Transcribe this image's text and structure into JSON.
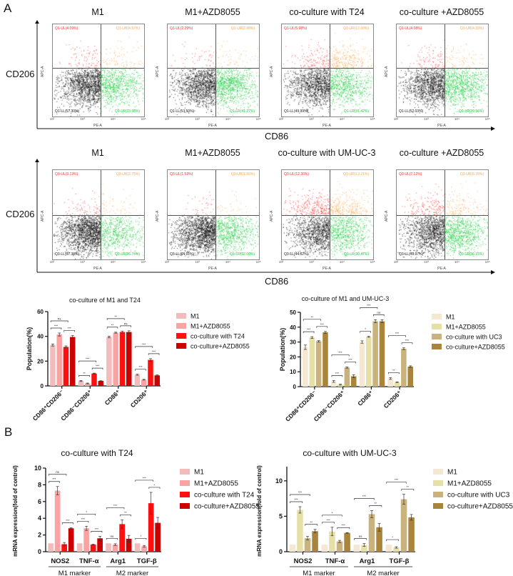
{
  "panel_a_label": "A",
  "panel_b_label": "B",
  "flow": {
    "y_marker": "CD206",
    "x_marker": "CD86",
    "y_axis_label": "APC-A",
    "x_axis_label": "PE-A",
    "ticks": [
      "10²",
      "10³",
      "10⁴",
      "10⁵"
    ],
    "colors": {
      "UL": "#ff2a2a",
      "UR": "#ffa54a",
      "LL": "#111111",
      "LR": "#18cc3a"
    },
    "rows": [
      {
        "plots": [
          {
            "title": "M1",
            "UL": "Q1-UL(4.09%)",
            "UR": "Q1-UR(4.57%)",
            "LL": "Q1-LL(57.30%)",
            "LR": "Q1-LR(33.98%)",
            "pct": {
              "UL": 4.09,
              "UR": 4.57,
              "LL": 57.3,
              "LR": 33.98
            }
          },
          {
            "title": "M1+AZD8055",
            "UL": "Q1-UL(2.29%)",
            "UR": "Q1-UR(2.98%)",
            "LL": "Q1-LL(53.50%)",
            "LR": "Q1-LR(41.27%)",
            "pct": {
              "UL": 2.29,
              "UR": 2.98,
              "LL": 53.5,
              "LR": 41.27
            }
          },
          {
            "title": "co-culture with T24",
            "UL": "Q1-UL(5.98%)",
            "UR": "Q1-UR(12.60%)",
            "LL": "Q1-LL(49.99%)",
            "LR": "Q1-LR(31.42%)",
            "pct": {
              "UL": 5.98,
              "UR": 12.6,
              "LL": 49.99,
              "LR": 31.42
            }
          },
          {
            "title": "co-culture +AZD8055",
            "UL": "Q1-UL(4.08%)",
            "UR": "Q1-UR(4.33%)",
            "LL": "Q1-LL(52.03%)",
            "LR": "Q1-LR(39.56%)",
            "pct": {
              "UL": 4.08,
              "UR": 4.33,
              "LL": 52.03,
              "LR": 39.56
            }
          }
        ]
      },
      {
        "plots": [
          {
            "title": "M1",
            "UL": "Q3-UL(3.13%)",
            "UR": "Q3-UR(2.75%)",
            "LL": "Q3-LL(67.38%)",
            "LR": "Q3-LR(26.74%)",
            "pct": {
              "UL": 3.13,
              "UR": 2.75,
              "LL": 67.38,
              "LR": 26.74
            }
          },
          {
            "title": "M1+AZD8055",
            "UL": "Q3-UL(1.53%)",
            "UR": "Q3-UR(1.56%)",
            "LL": "Q3-LL(64.91%)",
            "LR": "Q3-LR(32.00%)",
            "pct": {
              "UL": 1.53,
              "UR": 1.56,
              "LL": 64.91,
              "LR": 32.0
            }
          },
          {
            "title": "co-culture with UM-UC-3",
            "UL": "Q3-UL(12.30%)",
            "UR": "Q3-UR(13.21%)",
            "LL": "Q3-LL(44.02%)",
            "LR": "Q3-LR(30.47%)",
            "pct": {
              "UL": 12.3,
              "UR": 13.21,
              "LL": 44.02,
              "LR": 30.47
            }
          },
          {
            "title": "co-culture +AZD8055",
            "UL": "Q3-UL(7.12%)",
            "UR": "Q3-UR(6.76%)",
            "LL": "Q3-LL(49.97%)",
            "LR": "Q3-LR(36.15%)",
            "pct": {
              "UL": 7.12,
              "UR": 6.76,
              "LL": 49.97,
              "LR": 36.15
            }
          }
        ]
      }
    ]
  },
  "chart_data": [
    {
      "type": "bar",
      "title": "co-culture of M1 and T24",
      "ylabel": "Population(%)",
      "xlabel": "",
      "ylim": [
        0,
        60
      ],
      "yticks": [
        0,
        20,
        40,
        60
      ],
      "categories": [
        "CD86⁺CD206⁻",
        "CD86⁻CD206⁺",
        "CD86⁺",
        "CD206⁺"
      ],
      "legend_position": "right",
      "series": [
        {
          "name": "M1",
          "color": "#f3bcbc",
          "values": [
            33,
            4,
            39.5,
            9
          ],
          "errors": [
            0.8,
            0.4,
            0.7,
            0.4
          ]
        },
        {
          "name": "M1+AZD8055",
          "color": "#fba3a3",
          "values": [
            41.5,
            2,
            43,
            5
          ],
          "errors": [
            1.2,
            0.3,
            0.4,
            0.3
          ]
        },
        {
          "name": "co-culture with T24",
          "color": "#ff1010",
          "values": [
            31.5,
            10,
            43.5,
            21
          ],
          "errors": [
            0.8,
            0.3,
            0.8,
            1
          ]
        },
        {
          "name": "co-culture+AZD8055",
          "color": "#cc0000",
          "values": [
            39.5,
            4,
            43.5,
            8.5
          ],
          "errors": [
            1.2,
            0.2,
            1,
            0.4
          ]
        }
      ],
      "significance": [
        {
          "group": 0,
          "from": 0,
          "to": 1,
          "label": "***"
        },
        {
          "group": 0,
          "from": 2,
          "to": 3,
          "label": "***"
        },
        {
          "group": 0,
          "from": 0,
          "to": 2,
          "label": "ns"
        },
        {
          "group": 1,
          "from": 0,
          "to": 1,
          "label": "**"
        },
        {
          "group": 1,
          "from": 2,
          "to": 3,
          "label": "***"
        },
        {
          "group": 1,
          "from": 0,
          "to": 2,
          "label": "***"
        },
        {
          "group": 2,
          "from": 0,
          "to": 1,
          "label": "**"
        },
        {
          "group": 2,
          "from": 2,
          "to": 3,
          "label": "ns"
        },
        {
          "group": 2,
          "from": 0,
          "to": 2,
          "label": "**"
        },
        {
          "group": 3,
          "from": 0,
          "to": 1,
          "label": "***"
        },
        {
          "group": 3,
          "from": 2,
          "to": 3,
          "label": "***"
        },
        {
          "group": 3,
          "from": 0,
          "to": 2,
          "label": "***"
        }
      ]
    },
    {
      "type": "bar",
      "title": "co-culture of M1 and UM-UC-3",
      "ylabel": "Population(%)",
      "xlabel": "",
      "ylim": [
        0,
        50
      ],
      "yticks": [
        0,
        10,
        20,
        30,
        40,
        50
      ],
      "categories": [
        "CD86⁺CD206⁻",
        "CD86⁻CD206⁺",
        "CD86⁺",
        "CD206⁺"
      ],
      "legend_position": "right",
      "series": [
        {
          "name": "M1",
          "color": "#f5e8d2",
          "values": [
            26.5,
            3.5,
            30,
            5.5
          ],
          "errors": [
            1.5,
            0.6,
            0.8,
            0.6
          ]
        },
        {
          "name": "M1+AZD8055",
          "color": "#e6dfa6",
          "values": [
            33,
            1.3,
            33.5,
            3
          ],
          "errors": [
            0.6,
            0.3,
            0.3,
            0.2
          ]
        },
        {
          "name": "co-culture with UC3",
          "color": "#c9b27c",
          "values": [
            30.5,
            12.8,
            44,
            25.5
          ],
          "errors": [
            0.5,
            0.4,
            1,
            0.6
          ]
        },
        {
          "name": "co-culture+AZD8055",
          "color": "#a8853b",
          "values": [
            36.5,
            7,
            44,
            13.5
          ],
          "errors": [
            0.6,
            1,
            1,
            0.5
          ]
        }
      ],
      "significance": [
        {
          "group": 0,
          "from": 0,
          "to": 1,
          "label": "***"
        },
        {
          "group": 0,
          "from": 2,
          "to": 3,
          "label": "***"
        },
        {
          "group": 0,
          "from": 0,
          "to": 2,
          "label": "**"
        },
        {
          "group": 1,
          "from": 0,
          "to": 1,
          "label": "***"
        },
        {
          "group": 1,
          "from": 2,
          "to": 3,
          "label": "***"
        },
        {
          "group": 1,
          "from": 0,
          "to": 2,
          "label": "***"
        },
        {
          "group": 2,
          "from": 0,
          "to": 1,
          "label": "*"
        },
        {
          "group": 2,
          "from": 2,
          "to": 3,
          "label": "ns"
        },
        {
          "group": 2,
          "from": 0,
          "to": 2,
          "label": "***"
        },
        {
          "group": 3,
          "from": 0,
          "to": 1,
          "label": "**"
        },
        {
          "group": 3,
          "from": 2,
          "to": 3,
          "label": "***"
        },
        {
          "group": 3,
          "from": 0,
          "to": 2,
          "label": "***"
        }
      ]
    },
    {
      "type": "bar",
      "title": "co-culture with T24",
      "ylabel": "mRNA expression(fold of control)",
      "xlabel": "",
      "ylim": [
        0,
        10
      ],
      "yticks": [
        0,
        2,
        4,
        6,
        8,
        10
      ],
      "categories": [
        "NOS2",
        "TNF-α",
        "Arg1",
        "TGF-β"
      ],
      "category_groups": [
        {
          "label": "M1 marker",
          "from": 0,
          "to": 1
        },
        {
          "label": "M2 marker",
          "from": 2,
          "to": 3
        }
      ],
      "legend_position": "right",
      "series": [
        {
          "name": "M1",
          "color": "#f3bcbc",
          "values": [
            1,
            1,
            1,
            1
          ],
          "errors": [
            0,
            0,
            0,
            0
          ]
        },
        {
          "name": "M1+AZD8055",
          "color": "#fba3a3",
          "values": [
            7.3,
            2.8,
            0.85,
            0.65
          ],
          "errors": [
            0.5,
            0.25,
            0.1,
            0.1
          ]
        },
        {
          "name": "co-culture with T24",
          "color": "#ff1010",
          "values": [
            0.9,
            0.85,
            3.3,
            5.8
          ],
          "errors": [
            0.2,
            0.05,
            0.5,
            1.3
          ]
        },
        {
          "name": "co-culture+AZD8055",
          "color": "#cc0000",
          "values": [
            2.8,
            1.6,
            1.55,
            3.45
          ],
          "errors": [
            0.05,
            0.25,
            0.4,
            0.65
          ]
        }
      ],
      "significance": [
        {
          "group": 0,
          "from": 0,
          "to": 1,
          "label": "***"
        },
        {
          "group": 0,
          "from": 2,
          "to": 3,
          "label": "***"
        },
        {
          "group": 0,
          "from": 0,
          "to": 2,
          "label": "ns"
        },
        {
          "group": 1,
          "from": 0,
          "to": 1,
          "label": "***"
        },
        {
          "group": 1,
          "from": 2,
          "to": 3,
          "label": "***"
        },
        {
          "group": 1,
          "from": 0,
          "to": 2,
          "label": "*"
        },
        {
          "group": 2,
          "from": 0,
          "to": 1,
          "label": "ns"
        },
        {
          "group": 2,
          "from": 2,
          "to": 3,
          "label": "**"
        },
        {
          "group": 2,
          "from": 0,
          "to": 2,
          "label": "***"
        },
        {
          "group": 3,
          "from": 0,
          "to": 1,
          "label": "*"
        },
        {
          "group": 3,
          "from": 2,
          "to": 3,
          "label": "*"
        },
        {
          "group": 3,
          "from": 0,
          "to": 2,
          "label": "***"
        }
      ]
    },
    {
      "type": "bar",
      "title": "co-culture with UM-UC-3",
      "ylabel": "mRNA expression(fold of control)",
      "xlabel": "",
      "ylim": [
        0,
        12
      ],
      "yticks": [
        0,
        5,
        10
      ],
      "categories": [
        "NOS2",
        "TNF-α",
        "Arg1",
        "TGF-β"
      ],
      "category_groups": [
        {
          "label": "M1 marker",
          "from": 0,
          "to": 1
        },
        {
          "label": "M2 marker",
          "from": 2,
          "to": 3
        }
      ],
      "legend_position": "right",
      "series": [
        {
          "name": "M1",
          "color": "#f5e8d2",
          "values": [
            1,
            1,
            1,
            1
          ],
          "errors": [
            0,
            0,
            0,
            0
          ]
        },
        {
          "name": "M1+AZD8055",
          "color": "#e6dfa6",
          "values": [
            5.9,
            2.85,
            0.95,
            0.6
          ],
          "errors": [
            0.45,
            0.6,
            0.2,
            0.1
          ]
        },
        {
          "name": "co-culture with UC3",
          "color": "#c9b27c",
          "values": [
            1.9,
            1.45,
            5.3,
            7.4
          ],
          "errors": [
            0.25,
            0.15,
            0.5,
            0.7
          ]
        },
        {
          "name": "co-culture+AZD8055",
          "color": "#a8853b",
          "values": [
            2.9,
            2.65,
            3.45,
            4.85
          ],
          "errors": [
            0.25,
            0.05,
            0.55,
            0.4
          ]
        }
      ],
      "significance": [
        {
          "group": 0,
          "from": 0,
          "to": 1,
          "label": "***"
        },
        {
          "group": 0,
          "from": 2,
          "to": 3,
          "label": "**"
        },
        {
          "group": 0,
          "from": 0,
          "to": 2,
          "label": "***"
        },
        {
          "group": 1,
          "from": 0,
          "to": 1,
          "label": "***"
        },
        {
          "group": 1,
          "from": 2,
          "to": 3,
          "label": "***"
        },
        {
          "group": 1,
          "from": 0,
          "to": 2,
          "label": "*"
        },
        {
          "group": 2,
          "from": 0,
          "to": 1,
          "label": "ns"
        },
        {
          "group": 2,
          "from": 2,
          "to": 3,
          "label": "**"
        },
        {
          "group": 2,
          "from": 0,
          "to": 2,
          "label": "***"
        },
        {
          "group": 3,
          "from": 0,
          "to": 1,
          "label": "*"
        },
        {
          "group": 3,
          "from": 2,
          "to": 3,
          "label": "**"
        },
        {
          "group": 3,
          "from": 0,
          "to": 2,
          "label": "***"
        }
      ]
    }
  ]
}
